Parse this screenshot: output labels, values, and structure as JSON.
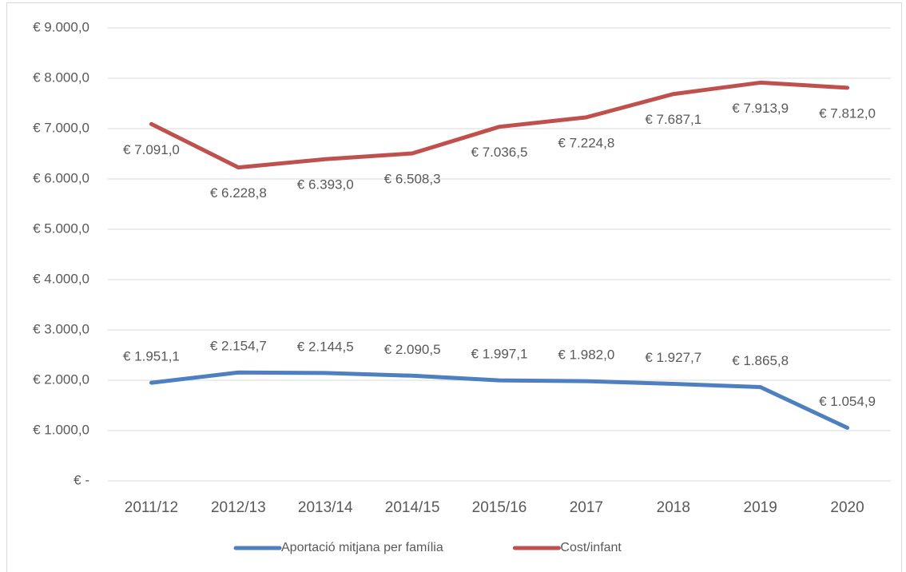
{
  "chart_data": {
    "type": "line",
    "categories": [
      "2011/12",
      "2012/13",
      "2013/14",
      "2014/15",
      "2015/16",
      "2017",
      "2018",
      "2019",
      "2020"
    ],
    "series": [
      {
        "name": "Aportació mitjana per família",
        "color": "#4e7fbf",
        "values": [
          1951.1,
          2154.7,
          2144.5,
          2090.5,
          1997.1,
          1982.0,
          1927.7,
          1865.8,
          1054.9
        ],
        "value_labels": [
          "€ 1.951,1",
          "€ 2.154,7",
          "€ 2.144,5",
          "€ 2.090,5",
          "€ 1.997,1",
          "€ 1.982,0",
          "€ 1.927,7",
          "€ 1.865,8",
          "€ 1.054,9"
        ]
      },
      {
        "name": "Cost/infant",
        "color": "#c0504d",
        "values": [
          7091.0,
          6228.8,
          6393.0,
          6508.3,
          7036.5,
          7224.8,
          7687.1,
          7913.9,
          7812.0
        ],
        "value_labels": [
          "€ 7.091,0",
          "€ 6.228,8",
          "€ 6.393,0",
          "€ 6.508,3",
          "€ 7.036,5",
          "€ 7.224,8",
          "€ 7.687,1",
          "€ 7.913,9",
          "€ 7.812,0"
        ]
      }
    ],
    "ylim": [
      0,
      9000
    ],
    "yticks": [
      {
        "value": 0,
        "label": "€ -"
      },
      {
        "value": 1000,
        "label": "€ 1.000,0"
      },
      {
        "value": 2000,
        "label": "€ 2.000,0"
      },
      {
        "value": 3000,
        "label": "€ 3.000,0"
      },
      {
        "value": 4000,
        "label": "€ 4.000,0"
      },
      {
        "value": 5000,
        "label": "€ 5.000,0"
      },
      {
        "value": 6000,
        "label": "€ 6.000,0"
      },
      {
        "value": 7000,
        "label": "€ 7.000,0"
      },
      {
        "value": 8000,
        "label": "€ 8.000,0"
      },
      {
        "value": 9000,
        "label": "€ 9.000,0"
      }
    ],
    "grid": true,
    "legend": "bottom"
  }
}
